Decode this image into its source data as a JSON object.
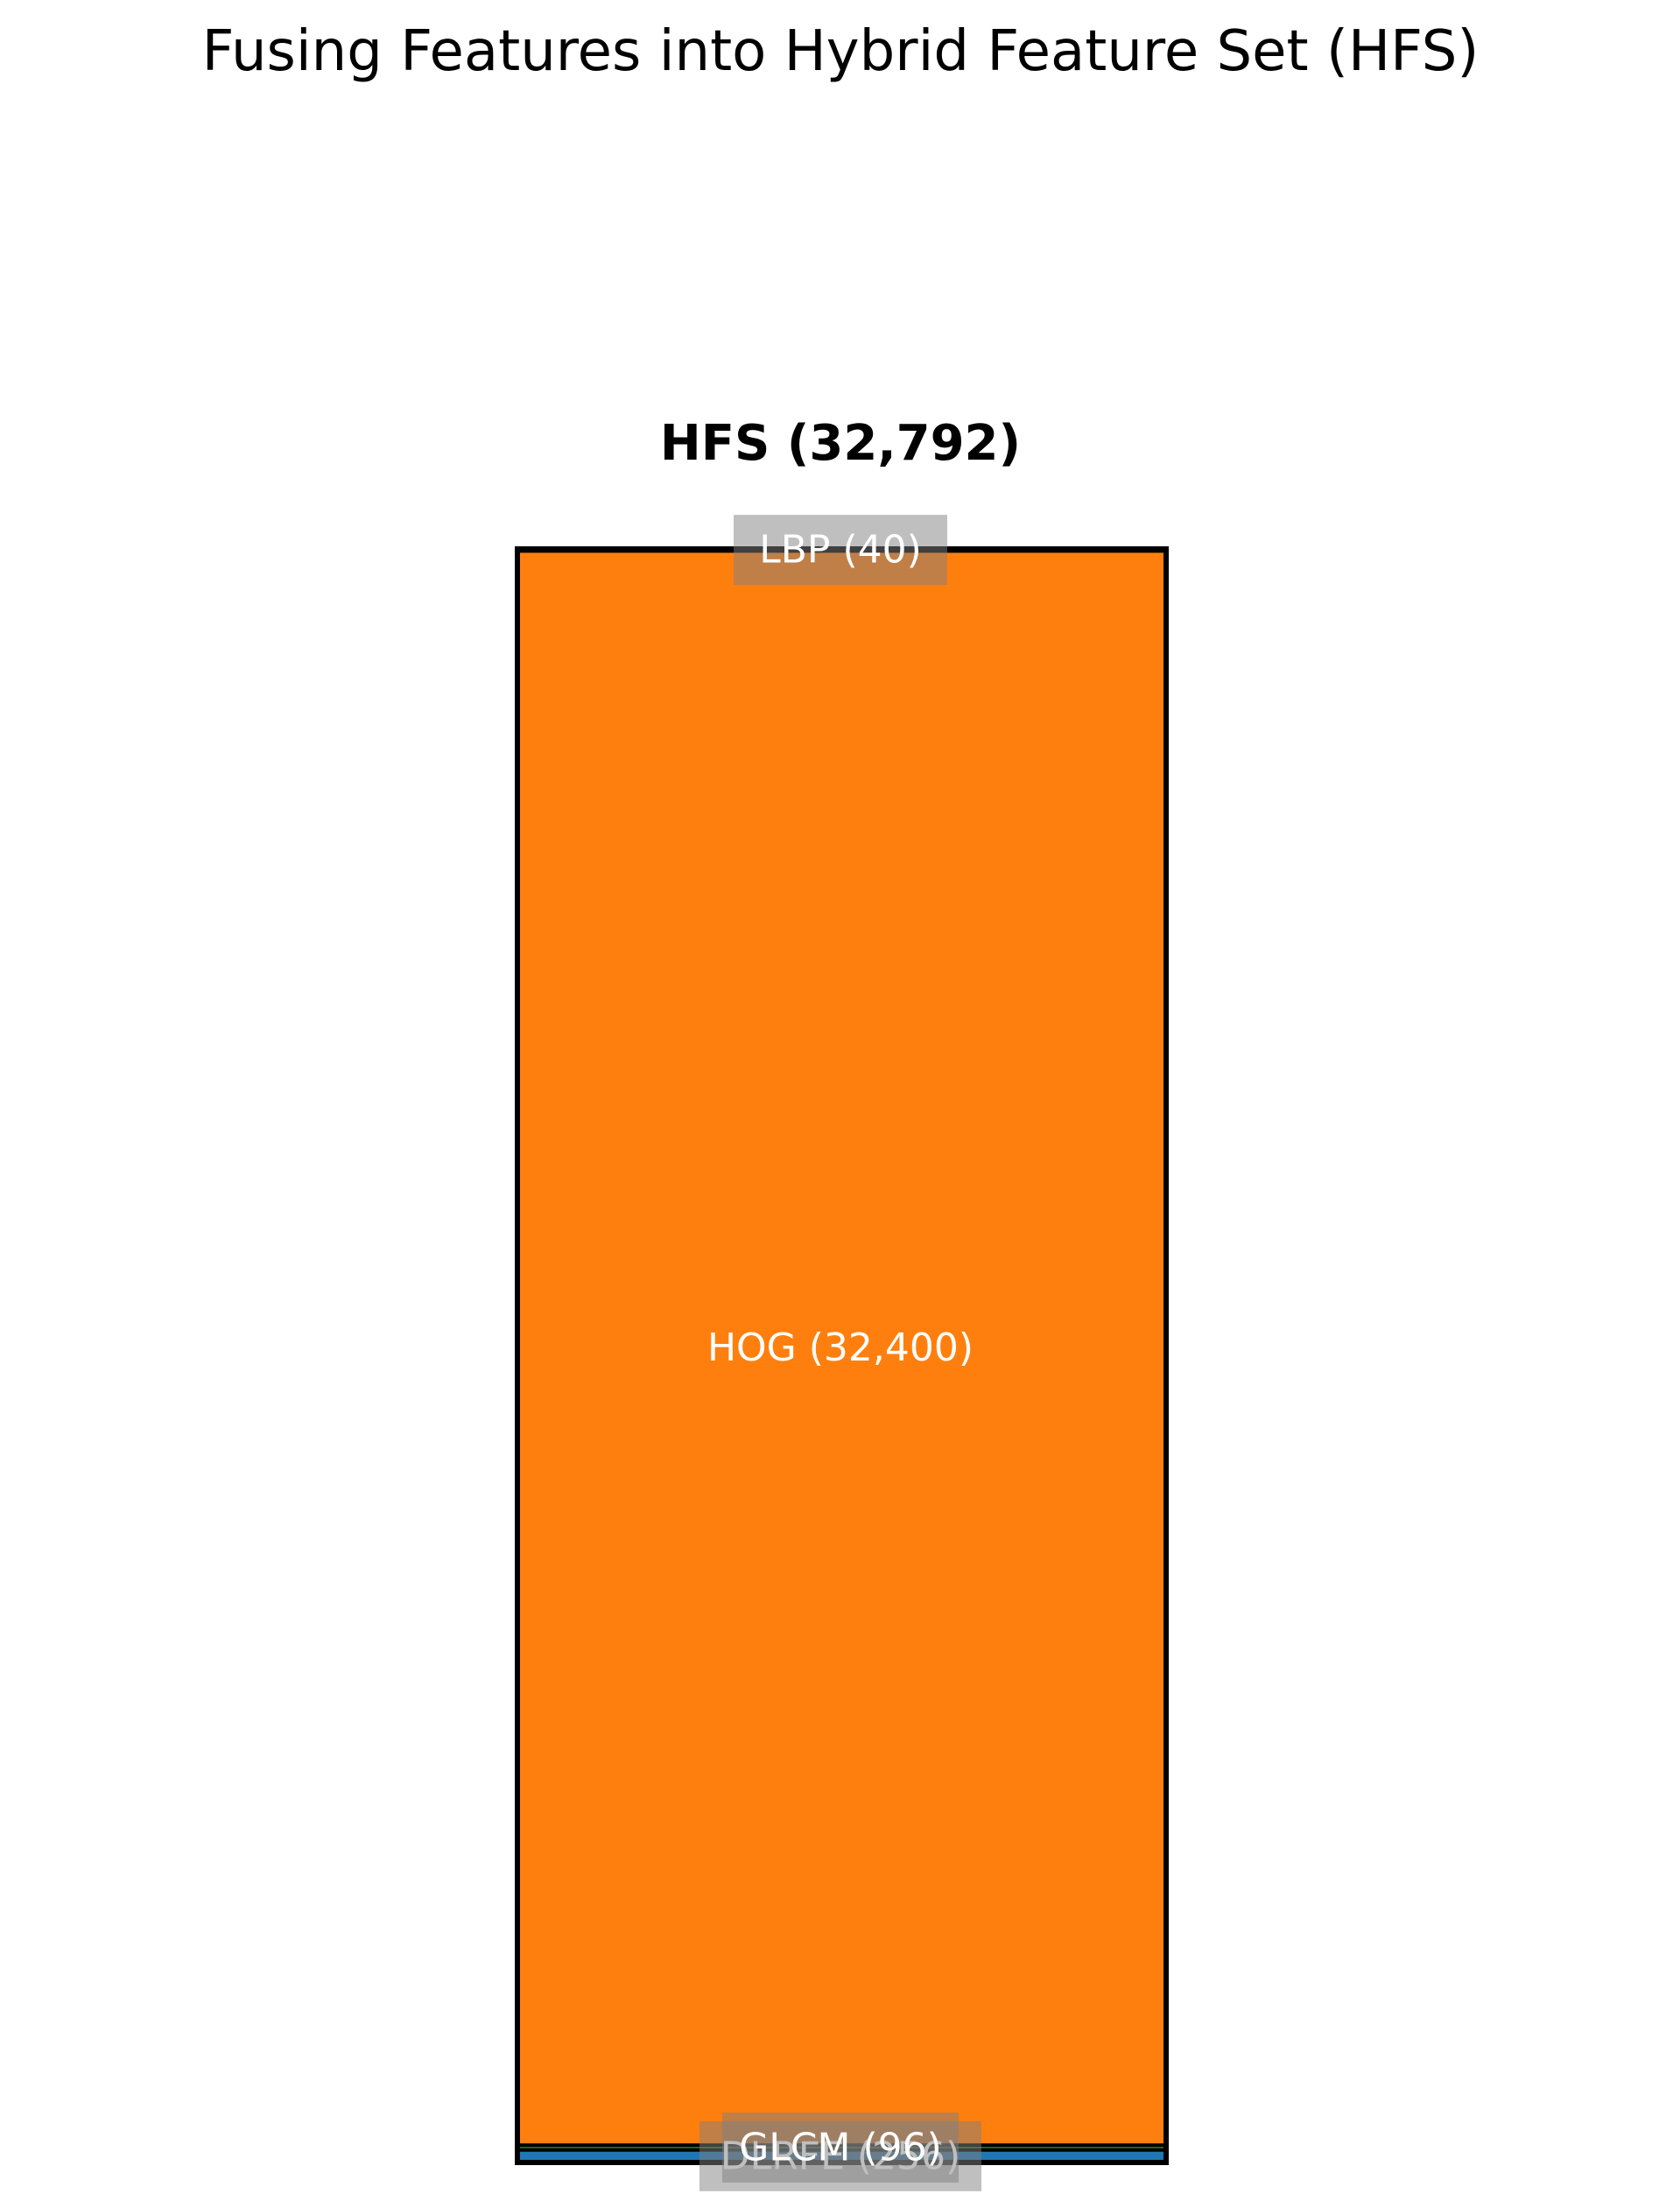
{
  "chart_data": {
    "type": "bar",
    "title": "Fusing Features into Hybrid Feature Set (HFS)",
    "bar_label": "HFS (32,792)",
    "total": 32792,
    "stacking_order": "bottom-to-top",
    "segments": [
      {
        "name": "DLRFE",
        "value": 256,
        "label": "DLRFE (256)",
        "color": "#1f77b4"
      },
      {
        "name": "GLCM",
        "value": 96,
        "label": "GLCM (96)",
        "color": "#2ca02c"
      },
      {
        "name": "HOG",
        "value": 32400,
        "label": "HOG (32,400)",
        "color": "#ff7f0e"
      },
      {
        "name": "LBP",
        "value": 40,
        "label": "LBP (40)",
        "color": "#d62728"
      }
    ],
    "xlabel": "",
    "ylabel": "",
    "axes_visible": false,
    "grid": false,
    "legend": "none"
  }
}
